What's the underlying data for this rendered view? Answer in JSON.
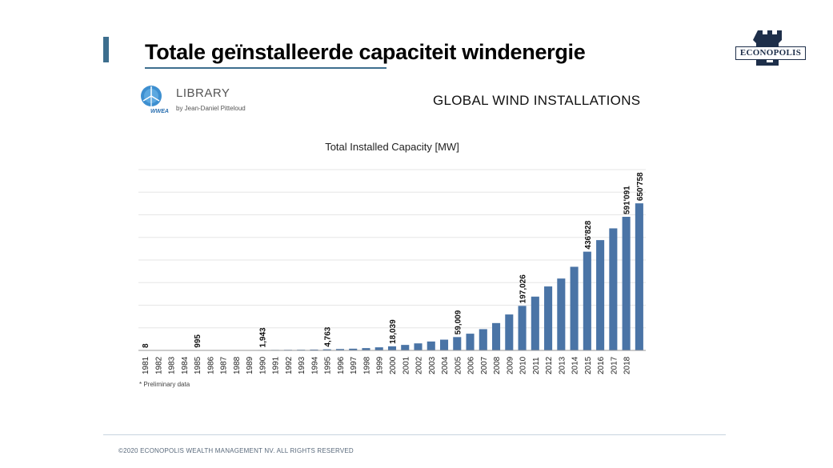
{
  "slide": {
    "title": "Totale geïnstalleerde capaciteit windenergie",
    "brand": "ECONOPOLIS",
    "footer": "©2020 ECONOPOLIS WEALTH MANAGEMENT NV. ALL RIGHTS RESERVED"
  },
  "source": {
    "library_title": "LIBRARY",
    "library_subtitle": "by Jean-Daniel Pitteloud",
    "logo_text": "WWEA",
    "header": "GLOBAL WIND INSTALLATIONS"
  },
  "chart_data": {
    "type": "bar",
    "title": "Total Installed Capacity [MW]",
    "footnote": "* Preliminary data",
    "bar_color": "#4a74a6",
    "grid": true,
    "ylim": [
      0,
      800000
    ],
    "categories": [
      "1981",
      "1982",
      "1983",
      "1984",
      "1985",
      "1986",
      "1987",
      "1988",
      "1989",
      "1990",
      "1991",
      "1992",
      "1993",
      "1994",
      "1995",
      "1996",
      "1997",
      "1998",
      "1999",
      "2000",
      "2001",
      "2002",
      "2003",
      "2004",
      "2005",
      "2006",
      "2007",
      "2008",
      "2009",
      "2010",
      "2011",
      "2012",
      "2013",
      "2014",
      "2015",
      "2016",
      "2017",
      "2018"
    ],
    "values": [
      8,
      30,
      100,
      400,
      995,
      1200,
      1400,
      1500,
      1600,
      1943,
      2200,
      2600,
      3000,
      3700,
      4763,
      6100,
      7600,
      10200,
      13600,
      18039,
      24300,
      31100,
      39400,
      47600,
      59009,
      74000,
      94000,
      121000,
      159000,
      197026,
      238000,
      283000,
      318000,
      370000,
      436828,
      488000,
      540000,
      591091
    ],
    "extra_bar": {
      "value": 650758,
      "label": "650'758"
    },
    "data_labels": [
      {
        "category": "1981",
        "label": "8"
      },
      {
        "category": "1985",
        "label": "995"
      },
      {
        "category": "1990",
        "label": "1,943"
      },
      {
        "category": "1995",
        "label": "4,763"
      },
      {
        "category": "2000",
        "label": "18,039"
      },
      {
        "category": "2005",
        "label": "59,009"
      },
      {
        "category": "2010",
        "label": "197,026"
      },
      {
        "category": "2015",
        "label": "436'828"
      },
      {
        "category": "2018",
        "label": "591'091"
      }
    ]
  }
}
